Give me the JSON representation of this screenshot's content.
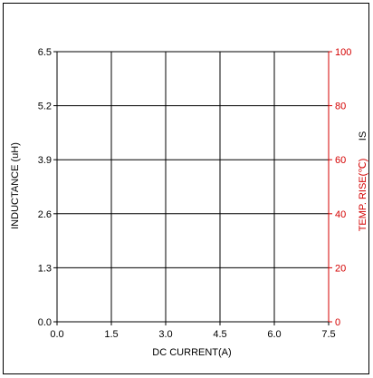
{
  "chart_data": {
    "type": "line",
    "title": "",
    "xlabel": "DC CURRENT(A)",
    "ylabel": "INDUCTANCE (uH)",
    "y2label": "TEMP. RISE(℃)",
    "y2label_suffix": "IS",
    "xlim": [
      0,
      7.5
    ],
    "ylim": [
      0,
      6.5
    ],
    "y2lim": [
      0,
      100
    ],
    "x_ticks": [
      "0.0",
      "1.5",
      "3.0",
      "4.5",
      "6.0",
      "7.5"
    ],
    "y_ticks": [
      "0.0",
      "1.3",
      "2.6",
      "3.9",
      "5.2",
      "6.5"
    ],
    "y2_ticks": [
      "0",
      "20",
      "40",
      "60",
      "80",
      "100"
    ],
    "grid": true,
    "series": []
  },
  "colors": {
    "left_axis": "#000000",
    "right_axis": "#d40000",
    "grid": "#000000"
  }
}
